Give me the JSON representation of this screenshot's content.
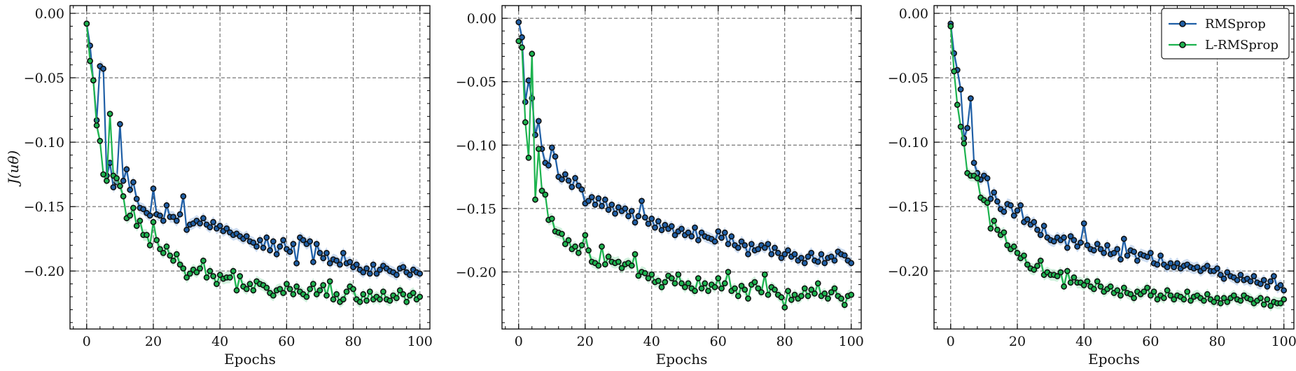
{
  "chart_data": [
    {
      "type": "line",
      "xlabel": "Epochs",
      "ylabel": "J(uθ)",
      "xlim": [
        -5,
        103
      ],
      "ylim": [
        -0.245,
        0.006
      ],
      "xticks": [
        0,
        20,
        40,
        60,
        80,
        100
      ],
      "yticks": [
        0.0,
        -0.05,
        -0.1,
        -0.15,
        -0.2
      ],
      "xtick_labels": [
        "0",
        "20",
        "40",
        "60",
        "80",
        "100"
      ],
      "ytick_labels": [
        "0.00",
        "−0.05",
        "−0.10",
        "−0.15",
        "−0.20"
      ],
      "grid": true,
      "legend": false,
      "series": [
        {
          "name": "RMSprop",
          "color": "#1f5fa6",
          "band_color": "#aec6e8",
          "values": [
            -0.008,
            -0.025,
            -0.052,
            -0.083,
            -0.041,
            -0.043,
            -0.126,
            -0.116,
            -0.135,
            -0.131,
            -0.086,
            -0.13,
            -0.121,
            -0.137,
            -0.131,
            -0.144,
            -0.151,
            -0.152,
            -0.155,
            -0.157,
            -0.136,
            -0.156,
            -0.157,
            -0.161,
            -0.149,
            -0.158,
            -0.158,
            -0.161,
            -0.156,
            -0.142,
            -0.168,
            -0.164,
            -0.163,
            -0.161,
            -0.163,
            -0.159,
            -0.164,
            -0.166,
            -0.162,
            -0.167,
            -0.165,
            -0.169,
            -0.167,
            -0.17,
            -0.172,
            -0.171,
            -0.173,
            -0.175,
            -0.173,
            -0.177,
            -0.178,
            -0.181,
            -0.176,
            -0.182,
            -0.174,
            -0.184,
            -0.177,
            -0.187,
            -0.181,
            -0.176,
            -0.183,
            -0.185,
            -0.179,
            -0.194,
            -0.174,
            -0.176,
            -0.179,
            -0.177,
            -0.193,
            -0.179,
            -0.186,
            -0.19,
            -0.186,
            -0.194,
            -0.191,
            -0.192,
            -0.195,
            -0.186,
            -0.194,
            -0.193,
            -0.197,
            -0.195,
            -0.199,
            -0.201,
            -0.198,
            -0.202,
            -0.195,
            -0.202,
            -0.199,
            -0.196,
            -0.198,
            -0.2,
            -0.201,
            -0.203,
            -0.198,
            -0.197,
            -0.201,
            -0.203,
            -0.199,
            -0.201,
            -0.202
          ]
        },
        {
          "name": "L-RMSprop",
          "color": "#1db34f",
          "band_color": "#b3e8c6",
          "values": [
            -0.008,
            -0.037,
            -0.052,
            -0.087,
            -0.099,
            -0.125,
            -0.13,
            -0.078,
            -0.126,
            -0.128,
            -0.134,
            -0.142,
            -0.159,
            -0.157,
            -0.151,
            -0.165,
            -0.161,
            -0.172,
            -0.172,
            -0.18,
            -0.162,
            -0.176,
            -0.183,
            -0.186,
            -0.181,
            -0.188,
            -0.192,
            -0.187,
            -0.195,
            -0.198,
            -0.205,
            -0.202,
            -0.199,
            -0.201,
            -0.198,
            -0.192,
            -0.205,
            -0.2,
            -0.204,
            -0.21,
            -0.203,
            -0.206,
            -0.205,
            -0.205,
            -0.2,
            -0.215,
            -0.204,
            -0.212,
            -0.214,
            -0.21,
            -0.215,
            -0.208,
            -0.21,
            -0.211,
            -0.213,
            -0.217,
            -0.219,
            -0.215,
            -0.214,
            -0.217,
            -0.21,
            -0.214,
            -0.218,
            -0.212,
            -0.216,
            -0.218,
            -0.22,
            -0.214,
            -0.21,
            -0.218,
            -0.215,
            -0.211,
            -0.219,
            -0.208,
            -0.222,
            -0.218,
            -0.224,
            -0.222,
            -0.216,
            -0.212,
            -0.214,
            -0.222,
            -0.224,
            -0.218,
            -0.223,
            -0.216,
            -0.222,
            -0.22,
            -0.222,
            -0.216,
            -0.222,
            -0.223,
            -0.219,
            -0.221,
            -0.215,
            -0.218,
            -0.224,
            -0.219,
            -0.217,
            -0.222,
            -0.22
          ]
        }
      ]
    },
    {
      "type": "line",
      "xlabel": "Epochs",
      "ylabel": "",
      "xlim": [
        -5,
        103
      ],
      "ylim": [
        -0.245,
        0.01
      ],
      "xticks": [
        0,
        20,
        40,
        60,
        80,
        100
      ],
      "yticks": [
        0.0,
        -0.05,
        -0.1,
        -0.15,
        -0.2
      ],
      "xtick_labels": [
        "0",
        "20",
        "40",
        "60",
        "80",
        "100"
      ],
      "ytick_labels": [
        "0.00",
        "−0.05",
        "−0.10",
        "−0.15",
        "−0.20"
      ],
      "grid": true,
      "legend": false,
      "series": [
        {
          "name": "RMSprop",
          "color": "#1f5fa6",
          "band_color": "#aec6e8",
          "values": [
            -0.003,
            -0.015,
            -0.066,
            -0.049,
            -0.063,
            -0.092,
            -0.081,
            -0.103,
            -0.114,
            -0.116,
            -0.102,
            -0.109,
            -0.125,
            -0.127,
            -0.123,
            -0.128,
            -0.133,
            -0.126,
            -0.132,
            -0.135,
            -0.146,
            -0.144,
            -0.141,
            -0.147,
            -0.142,
            -0.148,
            -0.143,
            -0.151,
            -0.147,
            -0.154,
            -0.149,
            -0.152,
            -0.15,
            -0.156,
            -0.152,
            -0.161,
            -0.156,
            -0.144,
            -0.157,
            -0.162,
            -0.158,
            -0.165,
            -0.16,
            -0.167,
            -0.163,
            -0.166,
            -0.164,
            -0.171,
            -0.168,
            -0.166,
            -0.171,
            -0.169,
            -0.172,
            -0.165,
            -0.175,
            -0.169,
            -0.172,
            -0.173,
            -0.174,
            -0.176,
            -0.168,
            -0.173,
            -0.169,
            -0.178,
            -0.172,
            -0.179,
            -0.181,
            -0.176,
            -0.179,
            -0.186,
            -0.178,
            -0.183,
            -0.182,
            -0.179,
            -0.181,
            -0.178,
            -0.186,
            -0.181,
            -0.185,
            -0.189,
            -0.186,
            -0.183,
            -0.188,
            -0.186,
            -0.191,
            -0.189,
            -0.193,
            -0.188,
            -0.185,
            -0.191,
            -0.192,
            -0.186,
            -0.193,
            -0.189,
            -0.188,
            -0.191,
            -0.184,
            -0.186,
            -0.187,
            -0.191,
            -0.193
          ]
        },
        {
          "name": "L-RMSprop",
          "color": "#1db34f",
          "band_color": "#b3e8c6",
          "values": [
            -0.018,
            -0.023,
            -0.082,
            -0.11,
            -0.028,
            -0.143,
            -0.103,
            -0.136,
            -0.139,
            -0.159,
            -0.158,
            -0.168,
            -0.169,
            -0.17,
            -0.178,
            -0.175,
            -0.182,
            -0.18,
            -0.185,
            -0.179,
            -0.171,
            -0.183,
            -0.192,
            -0.193,
            -0.195,
            -0.18,
            -0.194,
            -0.188,
            -0.192,
            -0.193,
            -0.192,
            -0.197,
            -0.194,
            -0.193,
            -0.195,
            -0.186,
            -0.203,
            -0.2,
            -0.201,
            -0.205,
            -0.202,
            -0.208,
            -0.207,
            -0.212,
            -0.208,
            -0.203,
            -0.205,
            -0.209,
            -0.202,
            -0.209,
            -0.212,
            -0.209,
            -0.213,
            -0.215,
            -0.205,
            -0.213,
            -0.209,
            -0.215,
            -0.21,
            -0.212,
            -0.205,
            -0.213,
            -0.209,
            -0.2,
            -0.215,
            -0.213,
            -0.219,
            -0.211,
            -0.214,
            -0.221,
            -0.21,
            -0.208,
            -0.213,
            -0.216,
            -0.202,
            -0.218,
            -0.212,
            -0.214,
            -0.218,
            -0.22,
            -0.228,
            -0.215,
            -0.222,
            -0.218,
            -0.221,
            -0.219,
            -0.213,
            -0.219,
            -0.214,
            -0.217,
            -0.209,
            -0.219,
            -0.217,
            -0.221,
            -0.216,
            -0.213,
            -0.219,
            -0.221,
            -0.226,
            -0.219,
            -0.218
          ]
        }
      ]
    },
    {
      "type": "line",
      "xlabel": "Epochs",
      "ylabel": "",
      "xlim": [
        -5,
        103
      ],
      "ylim": [
        -0.245,
        0.006
      ],
      "xticks": [
        0,
        20,
        40,
        60,
        80,
        100
      ],
      "yticks": [
        0.0,
        -0.05,
        -0.1,
        -0.15,
        -0.2
      ],
      "xtick_labels": [
        "0",
        "20",
        "40",
        "60",
        "80",
        "100"
      ],
      "ytick_labels": [
        "0.00",
        "−0.05",
        "−0.10",
        "−0.15",
        "−0.20"
      ],
      "grid": true,
      "legend": true,
      "legend_position": "top-right",
      "legend_entries": [
        "RMSprop",
        "L-RMSprop"
      ],
      "series": [
        {
          "name": "RMSprop",
          "color": "#1f5fa6",
          "band_color": "#aec6e8",
          "values": [
            -0.008,
            -0.031,
            -0.044,
            -0.059,
            -0.097,
            -0.089,
            -0.066,
            -0.116,
            -0.124,
            -0.129,
            -0.126,
            -0.128,
            -0.144,
            -0.139,
            -0.146,
            -0.152,
            -0.154,
            -0.148,
            -0.149,
            -0.157,
            -0.153,
            -0.149,
            -0.162,
            -0.16,
            -0.164,
            -0.162,
            -0.168,
            -0.172,
            -0.165,
            -0.174,
            -0.176,
            -0.177,
            -0.174,
            -0.176,
            -0.174,
            -0.182,
            -0.173,
            -0.176,
            -0.181,
            -0.178,
            -0.163,
            -0.18,
            -0.183,
            -0.184,
            -0.179,
            -0.183,
            -0.186,
            -0.18,
            -0.187,
            -0.186,
            -0.183,
            -0.191,
            -0.175,
            -0.188,
            -0.184,
            -0.185,
            -0.192,
            -0.187,
            -0.188,
            -0.189,
            -0.186,
            -0.194,
            -0.195,
            -0.188,
            -0.195,
            -0.197,
            -0.194,
            -0.197,
            -0.194,
            -0.198,
            -0.196,
            -0.195,
            -0.197,
            -0.198,
            -0.197,
            -0.2,
            -0.198,
            -0.196,
            -0.2,
            -0.2,
            -0.198,
            -0.203,
            -0.206,
            -0.201,
            -0.204,
            -0.205,
            -0.207,
            -0.203,
            -0.207,
            -0.206,
            -0.208,
            -0.204,
            -0.209,
            -0.21,
            -0.207,
            -0.212,
            -0.208,
            -0.204,
            -0.213,
            -0.211,
            -0.215
          ]
        },
        {
          "name": "L-RMSprop",
          "color": "#1db34f",
          "band_color": "#b3e8c6",
          "values": [
            -0.01,
            -0.045,
            -0.071,
            -0.088,
            -0.101,
            -0.124,
            -0.126,
            -0.126,
            -0.128,
            -0.143,
            -0.145,
            -0.147,
            -0.167,
            -0.161,
            -0.168,
            -0.172,
            -0.17,
            -0.18,
            -0.183,
            -0.181,
            -0.186,
            -0.19,
            -0.188,
            -0.195,
            -0.198,
            -0.199,
            -0.196,
            -0.192,
            -0.203,
            -0.201,
            -0.203,
            -0.203,
            -0.204,
            -0.201,
            -0.212,
            -0.2,
            -0.209,
            -0.205,
            -0.209,
            -0.209,
            -0.211,
            -0.208,
            -0.212,
            -0.214,
            -0.208,
            -0.212,
            -0.216,
            -0.214,
            -0.212,
            -0.217,
            -0.215,
            -0.219,
            -0.213,
            -0.217,
            -0.218,
            -0.221,
            -0.216,
            -0.218,
            -0.216,
            -0.213,
            -0.219,
            -0.216,
            -0.222,
            -0.219,
            -0.221,
            -0.215,
            -0.219,
            -0.222,
            -0.219,
            -0.22,
            -0.222,
            -0.216,
            -0.223,
            -0.22,
            -0.219,
            -0.221,
            -0.223,
            -0.218,
            -0.222,
            -0.224,
            -0.221,
            -0.225,
            -0.221,
            -0.224,
            -0.221,
            -0.219,
            -0.222,
            -0.223,
            -0.219,
            -0.221,
            -0.222,
            -0.225,
            -0.223,
            -0.221,
            -0.226,
            -0.222,
            -0.227,
            -0.224,
            -0.225,
            -0.225,
            -0.222
          ]
        }
      ]
    }
  ]
}
